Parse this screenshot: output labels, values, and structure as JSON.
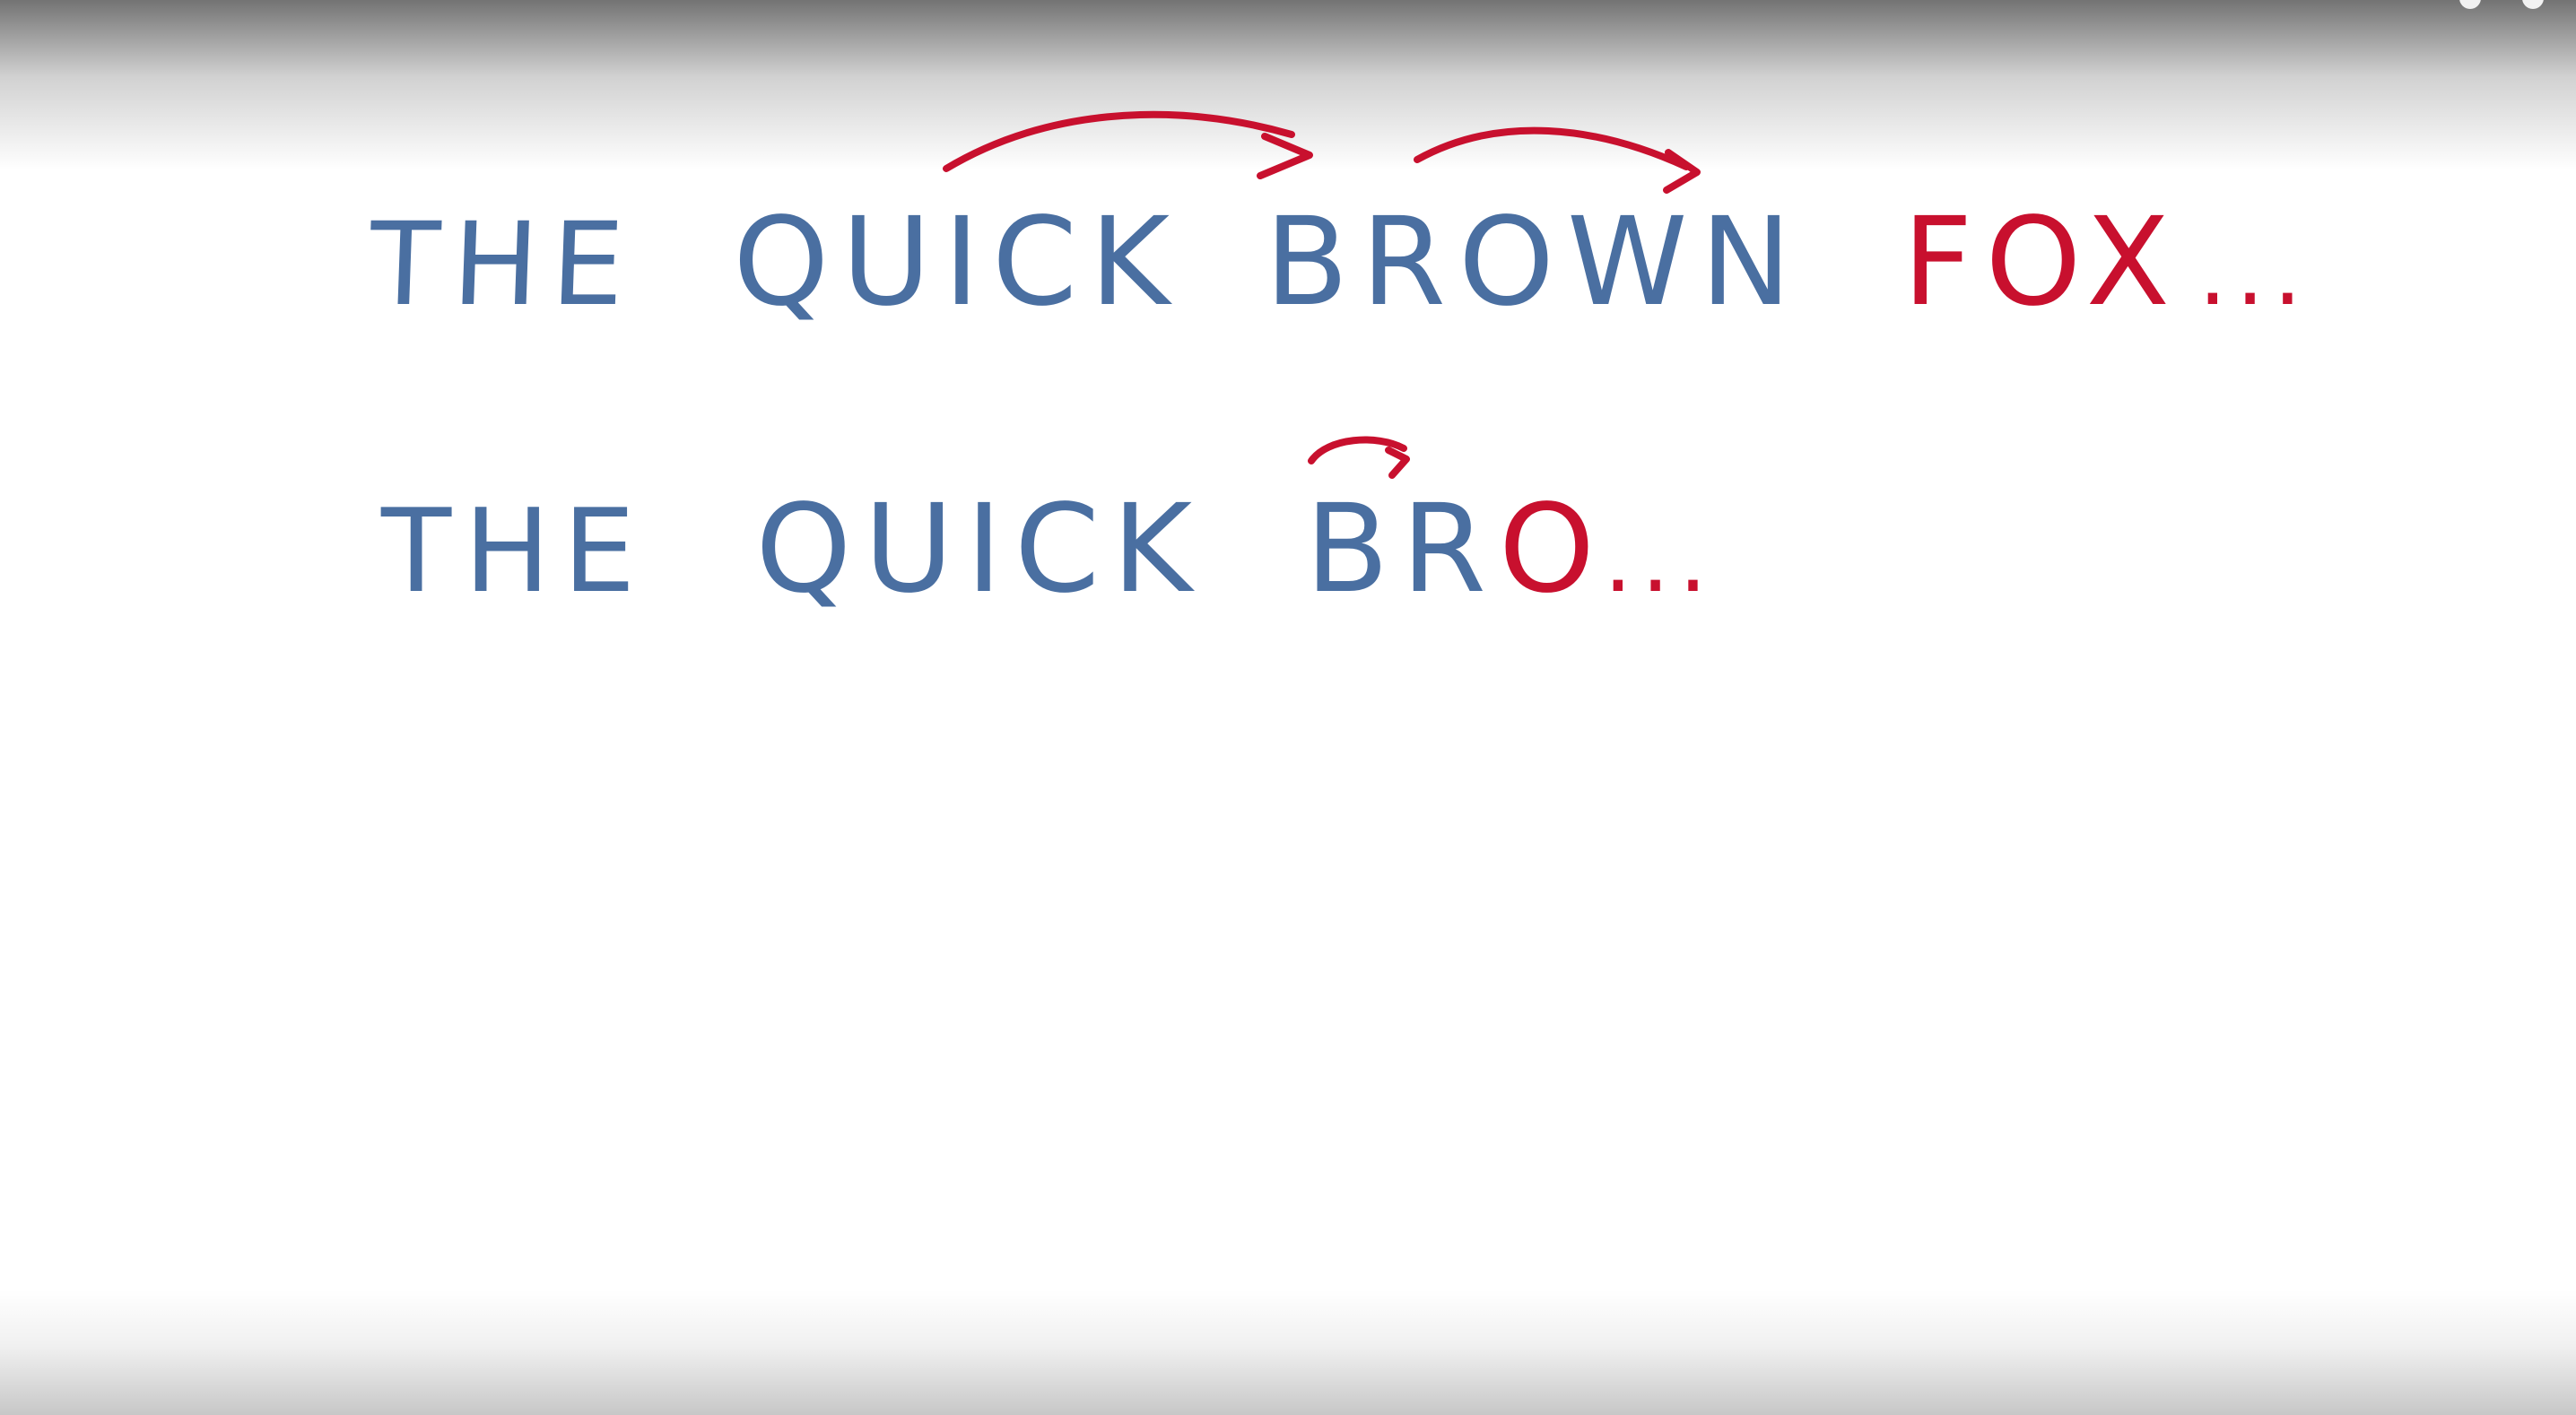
{
  "line1": {
    "the": "THE",
    "quick": "QUICK",
    "brown": "BROWN",
    "fox": "FOX",
    "ellipsis": "..."
  },
  "line2": {
    "the": "THE",
    "quick": "QUICK",
    "bro": "BR",
    "o": "O",
    "ellipsis": "..."
  },
  "colors": {
    "ink_blue": "#4a6fa1",
    "ink_red": "#c8102e",
    "background": "#ffffff"
  }
}
